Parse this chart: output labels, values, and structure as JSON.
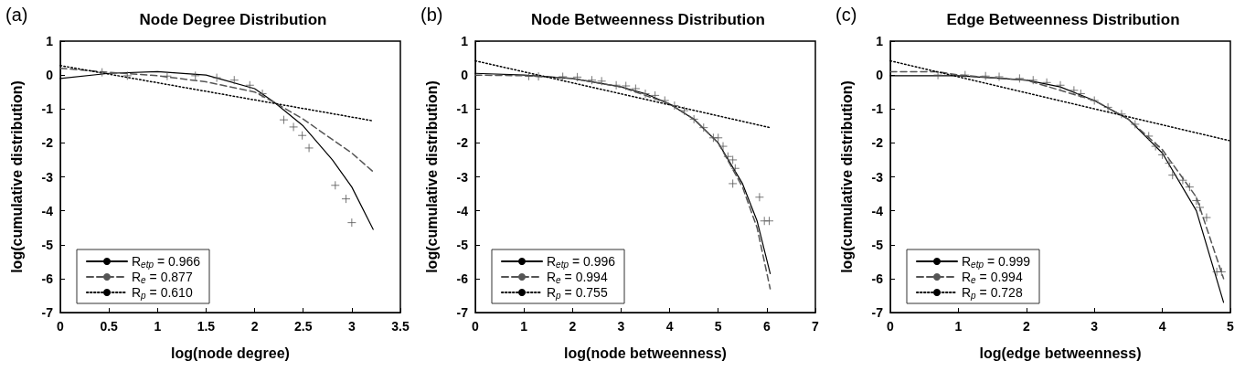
{
  "chart_data": [
    {
      "type": "line",
      "title": "Node Degree Distribution",
      "annotations": [
        "(a)"
      ],
      "xlabel": "log(node degree)",
      "ylabel": "log(cumulative distribution)",
      "xlim": [
        0,
        3.5
      ],
      "xticks": [
        0,
        0.5,
        1,
        1.5,
        2,
        2.5,
        3,
        3.5
      ],
      "ylim": [
        -7,
        1
      ],
      "yticks": [
        -7,
        -6,
        -5,
        -4,
        -3,
        -2,
        -1,
        0,
        1
      ],
      "grid": false,
      "legend": "bottom left",
      "series": [
        {
          "type": "scatter",
          "marker": "cross",
          "color": "#555555",
          "x": [
            0.43,
            0.69,
            1.1,
            1.39,
            1.61,
            1.79,
            1.95,
            2.08,
            2.3,
            2.4,
            2.49,
            2.56,
            2.83,
            2.94,
            3.0
          ],
          "values": [
            0.08,
            -0.02,
            -0.03,
            -0.02,
            -0.08,
            -0.15,
            -0.3,
            -0.55,
            -1.32,
            -1.53,
            -1.78,
            -2.15,
            -3.25,
            -3.65,
            -4.35
          ]
        },
        {
          "name": "R$_{etp}$ = 0.966",
          "color": "#000000",
          "line_style": "solid",
          "marker": "none",
          "x": [
            0,
            0.5,
            1,
            1.5,
            2,
            2.2,
            2.5,
            2.8,
            3.0,
            3.22
          ],
          "values": [
            -0.1,
            0.05,
            0.1,
            0.0,
            -0.4,
            -0.8,
            -1.5,
            -2.5,
            -3.3,
            -4.55
          ]
        },
        {
          "name": "R$_{e}$ = 0.877",
          "color": "#555555",
          "line_style": "dashed",
          "marker": "none",
          "x": [
            0,
            0.5,
            1,
            1.5,
            2,
            2.2,
            2.5,
            2.8,
            3.0,
            3.22
          ],
          "values": [
            0.2,
            0.08,
            -0.02,
            -0.2,
            -0.5,
            -0.8,
            -1.3,
            -1.9,
            -2.3,
            -2.85
          ]
        },
        {
          "name": "R$_{p}$ = 0.610",
          "color": "#000000",
          "line_style": "dotted",
          "marker": "none",
          "x": [
            0,
            3.22
          ],
          "values": [
            0.28,
            -1.35
          ]
        }
      ]
    },
    {
      "type": "line",
      "title": "Node Betweenness Distribution",
      "annotations": [
        "(b)"
      ],
      "xlabel": "log(node betweenness)",
      "ylabel": "log(cumulative distribution)",
      "xlim": [
        0,
        7
      ],
      "xticks": [
        0,
        1,
        2,
        3,
        4,
        5,
        6,
        7
      ],
      "ylim": [
        -7,
        1
      ],
      "yticks": [
        -7,
        -6,
        -5,
        -4,
        -3,
        -2,
        -1,
        0,
        1
      ],
      "grid": false,
      "legend": "bottom left",
      "series": [
        {
          "type": "scatter",
          "marker": "cross",
          "color": "#555555",
          "x": [
            1.1,
            1.3,
            1.8,
            2.1,
            2.4,
            2.6,
            2.9,
            3.1,
            3.3,
            3.5,
            3.7,
            3.9,
            4.1,
            4.3,
            4.5,
            4.7,
            4.9,
            5.0,
            5.1,
            5.2,
            5.3,
            5.35,
            5.3,
            5.85,
            5.95,
            6.05
          ],
          "values": [
            -0.03,
            -0.04,
            -0.05,
            -0.06,
            -0.15,
            -0.18,
            -0.3,
            -0.32,
            -0.4,
            -0.55,
            -0.6,
            -0.75,
            -0.9,
            -1.05,
            -1.3,
            -1.55,
            -1.85,
            -1.85,
            -2.1,
            -2.4,
            -2.5,
            -2.75,
            -3.2,
            -3.6,
            -4.3,
            -4.3
          ]
        },
        {
          "name": "R$_{etp}$ = 0.996",
          "color": "#000000",
          "line_style": "solid",
          "marker": "none",
          "x": [
            0,
            1,
            2,
            3,
            3.5,
            4,
            4.5,
            5,
            5.5,
            5.8,
            6.07
          ],
          "values": [
            0.05,
            0.0,
            -0.1,
            -0.35,
            -0.55,
            -0.85,
            -1.3,
            -2.0,
            -3.2,
            -4.3,
            -5.85
          ]
        },
        {
          "name": "R$_{e}$ = 0.994",
          "color": "#555555",
          "line_style": "dashed",
          "marker": "none",
          "x": [
            0,
            1,
            2,
            3,
            4,
            4.5,
            5,
            5.5,
            5.8,
            6.07
          ],
          "values": [
            0.0,
            -0.02,
            -0.1,
            -0.35,
            -0.85,
            -1.3,
            -2.0,
            -3.3,
            -4.5,
            -6.3
          ]
        },
        {
          "name": "R$_{p}$ = 0.755",
          "color": "#000000",
          "line_style": "dotted",
          "marker": "none",
          "x": [
            0,
            6.07
          ],
          "values": [
            0.42,
            -1.55
          ]
        }
      ]
    },
    {
      "type": "line",
      "title": "Edge Betweenness Distribution",
      "annotations": [
        "(c)"
      ],
      "xlabel": "log(edge betweenness)",
      "ylabel": "log(cumulative distribution)",
      "xlim": [
        0,
        5
      ],
      "xticks": [
        0,
        1,
        2,
        3,
        4,
        5
      ],
      "ylim": [
        -7,
        1
      ],
      "yticks": [
        -7,
        -6,
        -5,
        -4,
        -3,
        -2,
        -1,
        0,
        1
      ],
      "grid": false,
      "legend": "bottom left",
      "series": [
        {
          "type": "scatter",
          "marker": "cross",
          "color": "#555555",
          "x": [
            0.7,
            1.1,
            1.4,
            1.6,
            1.9,
            2.1,
            2.3,
            2.5,
            2.7,
            2.8,
            3.0,
            3.2,
            3.4,
            3.6,
            3.8,
            3.9,
            4.0,
            4.1,
            4.15,
            4.3,
            4.4,
            4.5,
            4.55,
            4.65,
            4.8,
            4.87
          ],
          "values": [
            0.0,
            0.0,
            -0.03,
            -0.05,
            -0.1,
            -0.15,
            -0.22,
            -0.3,
            -0.45,
            -0.55,
            -0.75,
            -0.95,
            -1.15,
            -1.45,
            -1.8,
            -2.1,
            -2.35,
            -2.6,
            -2.95,
            -3.1,
            -3.3,
            -3.7,
            -3.9,
            -4.2,
            -5.8,
            -5.8
          ]
        },
        {
          "name": "R$_{etp}$ = 0.999",
          "color": "#000000",
          "line_style": "solid",
          "marker": "none",
          "x": [
            0,
            1,
            2,
            2.5,
            3,
            3.5,
            4,
            4.5,
            4.9
          ],
          "values": [
            -0.02,
            -0.02,
            -0.15,
            -0.35,
            -0.75,
            -1.3,
            -2.3,
            -4.0,
            -6.7
          ]
        },
        {
          "name": "R$_{e}$ = 0.994",
          "color": "#555555",
          "line_style": "dashed",
          "marker": "none",
          "x": [
            0,
            0.7,
            1,
            2,
            3,
            3.5,
            4,
            4.5,
            4.9
          ],
          "values": [
            0.1,
            0.1,
            0.0,
            -0.15,
            -0.75,
            -1.3,
            -2.2,
            -3.6,
            -6.0
          ]
        },
        {
          "name": "R$_{p}$ = 0.728",
          "color": "#000000",
          "line_style": "dotted",
          "marker": "none",
          "x": [
            0,
            4.98
          ],
          "values": [
            0.42,
            -1.93
          ]
        }
      ]
    }
  ]
}
